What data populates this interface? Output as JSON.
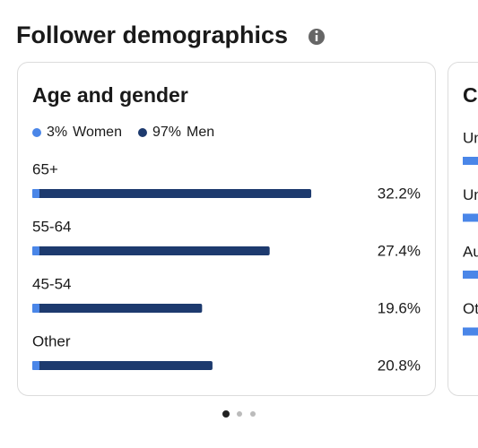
{
  "header": {
    "title": "Follower demographics"
  },
  "chart_data": {
    "type": "bar",
    "title": "Age and gender",
    "legend": [
      {
        "label": "3%",
        "name": "Women",
        "color": "#4a86e8"
      },
      {
        "label": "97%",
        "name": "Men",
        "color": "#1d3a6e"
      }
    ],
    "categories": [
      "65+",
      "55-64",
      "45-54",
      "Other"
    ],
    "values": [
      32.2,
      27.4,
      19.6,
      20.8
    ],
    "value_labels": [
      "32.2%",
      "27.4%",
      "19.6%",
      "20.8%"
    ],
    "color": "#1d3a6e"
  },
  "next_card": {
    "title": "C",
    "items": [
      "Un",
      "Un",
      "Au",
      "Ot"
    ]
  }
}
